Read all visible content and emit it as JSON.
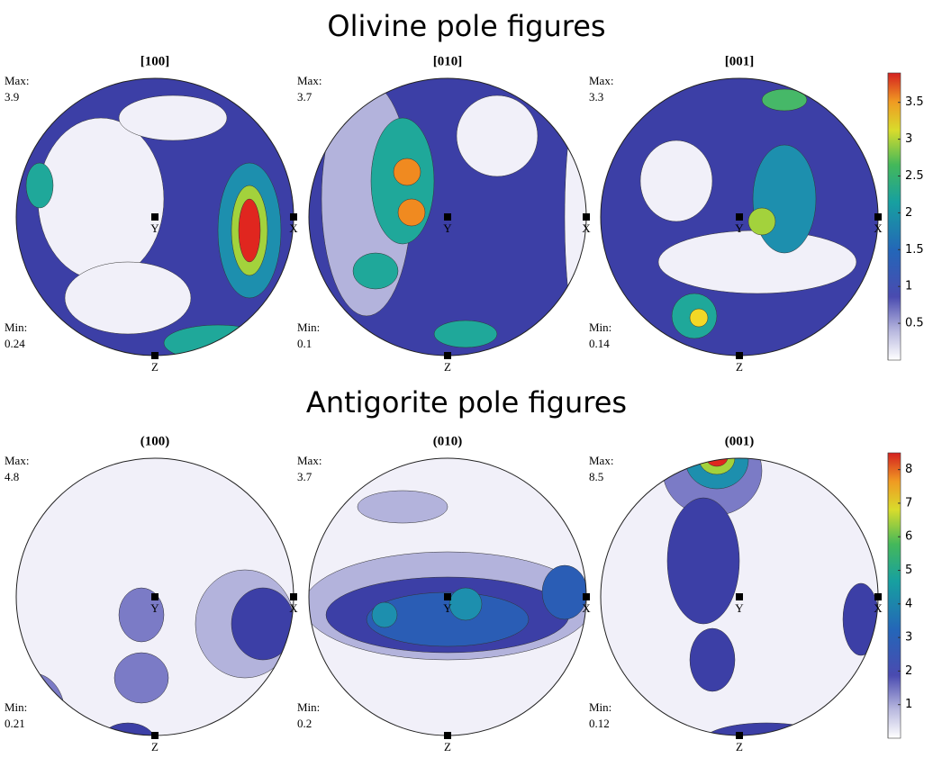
{
  "labels": {
    "max": "Max:",
    "min": "Min:",
    "x": "X",
    "y": "Y",
    "z": "Z"
  },
  "sections": [
    {
      "title": "Olivine pole figures",
      "figures": [
        {
          "label": "[100]",
          "max": 3.9,
          "min": 0.24
        },
        {
          "label": "[010]",
          "max": 3.7,
          "min": 0.1
        },
        {
          "label": "[001]",
          "max": 3.3,
          "min": 0.14
        }
      ],
      "colorbar": {
        "lim": [
          0,
          3.9
        ],
        "ticks": [
          0.5,
          1,
          1.5,
          2,
          2.5,
          3,
          3.5
        ]
      }
    },
    {
      "title": "Antigorite pole figures",
      "figures": [
        {
          "label": "(100)",
          "max": 4.8,
          "min": 0.21
        },
        {
          "label": "(010)",
          "max": 3.7,
          "min": 0.2
        },
        {
          "label": "(001)",
          "max": 8.5,
          "min": 0.12
        }
      ],
      "colorbar": {
        "lim": [
          0,
          8.5
        ],
        "ticks": [
          1,
          2,
          3,
          4,
          5,
          6,
          7,
          8
        ]
      }
    }
  ]
}
